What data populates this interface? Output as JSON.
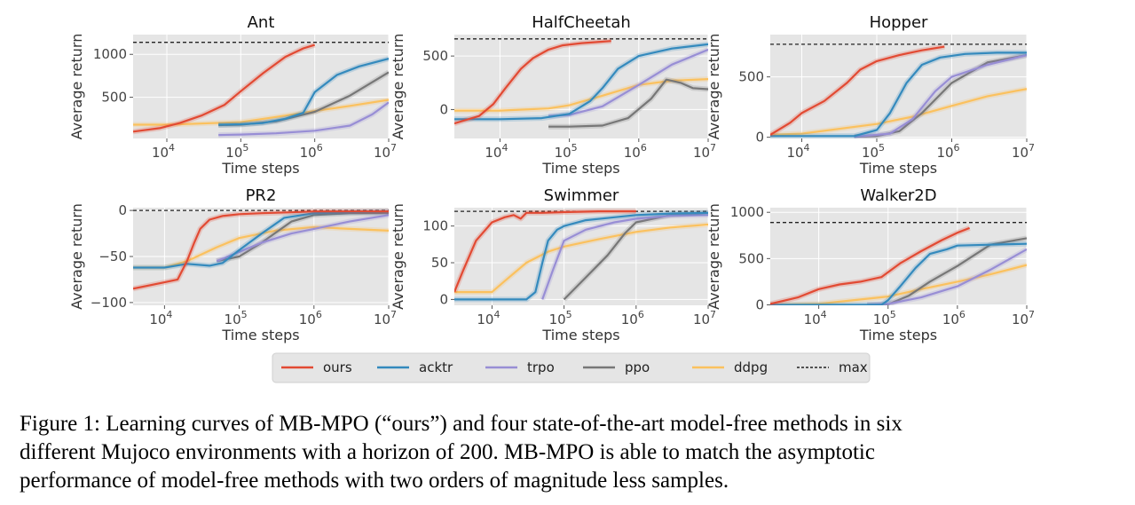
{
  "caption": {
    "lines": [
      "Figure 1: Learning curves of MB-MPO (“ours”) and four state-of-the-art model-free methods in six",
      "different Mujoco environments with a horizon of 200.  MB-MPO is able to match the asymptotic",
      "performance of model-free methods with two orders of magnitude less samples."
    ]
  },
  "legend": {
    "entries": [
      {
        "label": "ours",
        "color": "#e24a33",
        "style": "solid"
      },
      {
        "label": "acktr",
        "color": "#348abd",
        "style": "solid"
      },
      {
        "label": "trpo",
        "color": "#988ed5",
        "style": "solid"
      },
      {
        "label": "ppo",
        "color": "#777777",
        "style": "solid"
      },
      {
        "label": "ddpg",
        "color": "#fbc15e",
        "style": "solid"
      },
      {
        "label": "max",
        "color": "#222222",
        "style": "dashed"
      }
    ]
  },
  "chart_data": [
    {
      "type": "line",
      "title": "Ant",
      "xlabel": "Time steps",
      "ylabel": "Average return",
      "xscale": "log",
      "xlim": [
        3500,
        10000000
      ],
      "ylim": [
        20,
        1230
      ],
      "xticks": [
        {
          "value": 10000,
          "label": "10^4"
        },
        {
          "value": 100000,
          "label": "10^5"
        },
        {
          "value": 1000000,
          "label": "10^6"
        },
        {
          "value": 10000000,
          "label": "10^7"
        }
      ],
      "yticks": [
        {
          "value": 500,
          "label": "500"
        },
        {
          "value": 1000,
          "label": "1000"
        }
      ],
      "grid": true,
      "max_line": 1140,
      "series": [
        {
          "name": "ours",
          "x": [
            3500,
            8000,
            15000,
            30000,
            60000,
            100000,
            200000,
            400000,
            700000,
            1000000
          ],
          "y": [
            100,
            140,
            200,
            290,
            410,
            570,
            780,
            970,
            1070,
            1110
          ]
        },
        {
          "name": "acktr",
          "x": [
            50000,
            100000,
            200000,
            400000,
            700000,
            1000000,
            2000000,
            4000000,
            10000000
          ],
          "y": [
            180,
            185,
            200,
            250,
            320,
            560,
            760,
            860,
            950
          ]
        },
        {
          "name": "trpo",
          "x": [
            50000,
            100000,
            300000,
            1000000,
            3000000,
            6000000,
            10000000
          ],
          "y": [
            60,
            65,
            80,
            110,
            170,
            300,
            440
          ]
        },
        {
          "name": "ppo",
          "x": [
            50000,
            100000,
            300000,
            1000000,
            3000000,
            10000000
          ],
          "y": [
            175,
            180,
            220,
            330,
            520,
            790
          ]
        },
        {
          "name": "ddpg",
          "x": [
            3500,
            10000,
            100000,
            300000,
            1000000,
            3000000,
            10000000
          ],
          "y": [
            180,
            180,
            210,
            270,
            340,
            400,
            470
          ]
        }
      ]
    },
    {
      "type": "line",
      "title": "HalfCheetah",
      "xlabel": "Time steps",
      "ylabel": "Average return",
      "xscale": "log",
      "xlim": [
        2200,
        10000000
      ],
      "ylim": [
        -270,
        700
      ],
      "xticks": [
        {
          "value": 10000,
          "label": "10^4"
        },
        {
          "value": 100000,
          "label": "10^5"
        },
        {
          "value": 1000000,
          "label": "10^6"
        },
        {
          "value": 10000000,
          "label": "10^7"
        }
      ],
      "yticks": [
        {
          "value": 0,
          "label": "0"
        },
        {
          "value": 500,
          "label": "500"
        }
      ],
      "grid": true,
      "max_line": 660,
      "series": [
        {
          "name": "ours",
          "x": [
            2200,
            5000,
            8000,
            12000,
            20000,
            30000,
            50000,
            80000,
            150000,
            250000,
            400000
          ],
          "y": [
            -130,
            -60,
            50,
            200,
            380,
            480,
            560,
            600,
            620,
            630,
            640
          ]
        },
        {
          "name": "acktr",
          "x": [
            2200,
            10000,
            40000,
            100000,
            200000,
            300000,
            500000,
            1000000,
            3000000,
            10000000
          ],
          "y": [
            -90,
            -90,
            -80,
            -40,
            80,
            200,
            380,
            500,
            570,
            610
          ]
        },
        {
          "name": "trpo",
          "x": [
            50000,
            100000,
            300000,
            1000000,
            3000000,
            10000000
          ],
          "y": [
            -60,
            -50,
            30,
            230,
            420,
            560
          ]
        },
        {
          "name": "ppo",
          "x": [
            50000,
            100000,
            300000,
            700000,
            1500000,
            2500000,
            4000000,
            6000000,
            10000000
          ],
          "y": [
            -160,
            -160,
            -150,
            -80,
            100,
            280,
            250,
            200,
            190
          ]
        },
        {
          "name": "ddpg",
          "x": [
            2200,
            10000,
            50000,
            100000,
            300000,
            1000000,
            3000000,
            10000000
          ],
          "y": [
            -10,
            -10,
            10,
            40,
            130,
            230,
            270,
            285
          ]
        }
      ]
    },
    {
      "type": "line",
      "title": "Hopper",
      "xlabel": "Time steps",
      "ylabel": "Average return",
      "xscale": "log",
      "xlim": [
        3800,
        10000000
      ],
      "ylim": [
        -10,
        850
      ],
      "xticks": [
        {
          "value": 10000,
          "label": "10^4"
        },
        {
          "value": 100000,
          "label": "10^5"
        },
        {
          "value": 1000000,
          "label": "10^6"
        },
        {
          "value": 10000000,
          "label": "10^7"
        }
      ],
      "yticks": [
        {
          "value": 0,
          "label": "0"
        },
        {
          "value": 500,
          "label": "500"
        }
      ],
      "grid": true,
      "max_line": 770,
      "series": [
        {
          "name": "ours",
          "x": [
            3800,
            7000,
            10000,
            20000,
            40000,
            60000,
            100000,
            200000,
            400000,
            800000
          ],
          "y": [
            20,
            120,
            200,
            300,
            450,
            560,
            630,
            680,
            720,
            750
          ]
        },
        {
          "name": "acktr",
          "x": [
            3800,
            50000,
            100000,
            150000,
            250000,
            400000,
            700000,
            1500000,
            4000000,
            10000000
          ],
          "y": [
            10,
            10,
            60,
            200,
            450,
            600,
            660,
            690,
            700,
            700
          ]
        },
        {
          "name": "trpo",
          "x": [
            50000,
            150000,
            300000,
            600000,
            1000000,
            3000000,
            10000000
          ],
          "y": [
            5,
            30,
            150,
            380,
            500,
            600,
            680
          ]
        },
        {
          "name": "ppo",
          "x": [
            50000,
            100000,
            200000,
            400000,
            1000000,
            3000000,
            10000000
          ],
          "y": [
            5,
            10,
            50,
            200,
            450,
            620,
            680
          ]
        },
        {
          "name": "ddpg",
          "x": [
            3800,
            10000,
            100000,
            300000,
            1000000,
            3000000,
            10000000
          ],
          "y": [
            20,
            30,
            110,
            170,
            260,
            340,
            400
          ]
        }
      ]
    },
    {
      "type": "line",
      "title": "PR2",
      "xlabel": "Time steps",
      "ylabel": "Average return",
      "xscale": "log",
      "xlim": [
        3800,
        10000000
      ],
      "ylim": [
        -103,
        3
      ],
      "xticks": [
        {
          "value": 10000,
          "label": "10^4"
        },
        {
          "value": 100000,
          "label": "10^5"
        },
        {
          "value": 1000000,
          "label": "10^6"
        },
        {
          "value": 10000000,
          "label": "10^7"
        }
      ],
      "yticks": [
        {
          "value": -100,
          "label": "−100"
        },
        {
          "value": -50,
          "label": "−50"
        },
        {
          "value": 0,
          "label": "0"
        }
      ],
      "grid": true,
      "max_line": 0,
      "series": [
        {
          "name": "ours",
          "x": [
            3800,
            10000,
            15000,
            20000,
            25000,
            30000,
            40000,
            60000,
            100000,
            200000,
            500000,
            1000000,
            3000000,
            10000000
          ],
          "y": [
            -85,
            -78,
            -75,
            -55,
            -35,
            -20,
            -10,
            -6,
            -4,
            -3,
            -2,
            -1,
            -1,
            -1
          ]
        },
        {
          "name": "acktr",
          "x": [
            3800,
            10000,
            20000,
            40000,
            60000,
            100000,
            200000,
            400000,
            1000000,
            3000000,
            10000000
          ],
          "y": [
            -62,
            -62,
            -58,
            -60,
            -57,
            -43,
            -25,
            -8,
            -3,
            -2,
            -1
          ]
        },
        {
          "name": "trpo",
          "x": [
            50000,
            100000,
            200000,
            500000,
            1000000,
            3000000,
            10000000
          ],
          "y": [
            -55,
            -45,
            -35,
            -25,
            -20,
            -12,
            -5
          ]
        },
        {
          "name": "ppo",
          "x": [
            50000,
            100000,
            200000,
            500000,
            1000000,
            3000000,
            10000000
          ],
          "y": [
            -55,
            -50,
            -35,
            -12,
            -5,
            -3,
            -3
          ]
        },
        {
          "name": "ddpg",
          "x": [
            3800,
            10000,
            20000,
            50000,
            100000,
            300000,
            1000000,
            3000000,
            10000000
          ],
          "y": [
            -62,
            -62,
            -55,
            -40,
            -30,
            -22,
            -18,
            -20,
            -22
          ]
        }
      ]
    },
    {
      "type": "line",
      "title": "Swimmer",
      "xlabel": "Time steps",
      "ylabel": "Average return",
      "xscale": "log",
      "xlim": [
        3000,
        10000000
      ],
      "ylim": [
        -8,
        125
      ],
      "xticks": [
        {
          "value": 10000,
          "label": "10^4"
        },
        {
          "value": 100000,
          "label": "10^5"
        },
        {
          "value": 1000000,
          "label": "10^6"
        },
        {
          "value": 10000000,
          "label": "10^7"
        }
      ],
      "yticks": [
        {
          "value": 0,
          "label": "0"
        },
        {
          "value": 50,
          "label": "50"
        },
        {
          "value": 100,
          "label": "100"
        }
      ],
      "grid": true,
      "max_line": 120,
      "series": [
        {
          "name": "ours",
          "x": [
            3000,
            4000,
            6000,
            10000,
            15000,
            20000,
            25000,
            30000,
            50000,
            100000,
            300000,
            1000000
          ],
          "y": [
            10,
            40,
            80,
            105,
            112,
            115,
            110,
            118,
            118,
            119,
            120,
            120
          ]
        },
        {
          "name": "acktr",
          "x": [
            3000,
            30000,
            40000,
            50000,
            60000,
            80000,
            100000,
            200000,
            500000,
            1000000,
            3000000,
            10000000
          ],
          "y": [
            0,
            0,
            10,
            50,
            80,
            95,
            100,
            108,
            112,
            115,
            117,
            118
          ]
        },
        {
          "name": "trpo",
          "x": [
            50000,
            70000,
            100000,
            200000,
            500000,
            1000000,
            3000000,
            10000000
          ],
          "y": [
            0,
            40,
            80,
            95,
            105,
            110,
            114,
            115
          ]
        },
        {
          "name": "ppo",
          "x": [
            100000,
            200000,
            400000,
            700000,
            1000000,
            3000000,
            10000000
          ],
          "y": [
            0,
            30,
            60,
            90,
            105,
            115,
            118
          ]
        },
        {
          "name": "ddpg",
          "x": [
            3000,
            10000,
            15000,
            30000,
            60000,
            100000,
            300000,
            1000000,
            3000000,
            10000000
          ],
          "y": [
            10,
            10,
            25,
            50,
            65,
            72,
            82,
            92,
            98,
            102
          ]
        }
      ]
    },
    {
      "type": "line",
      "title": "Walker2D",
      "xlabel": "Time steps",
      "ylabel": "Average return",
      "xscale": "log",
      "xlim": [
        2000,
        10000000
      ],
      "ylim": [
        -5,
        1050
      ],
      "xticks": [
        {
          "value": 10000,
          "label": "10^4"
        },
        {
          "value": 100000,
          "label": "10^5"
        },
        {
          "value": 1000000,
          "label": "10^6"
        },
        {
          "value": 10000000,
          "label": "10^7"
        }
      ],
      "yticks": [
        {
          "value": 0,
          "label": "0"
        },
        {
          "value": 500,
          "label": "500"
        },
        {
          "value": 1000,
          "label": "1000"
        }
      ],
      "grid": true,
      "max_line": 890,
      "series": [
        {
          "name": "ours",
          "x": [
            2000,
            5000,
            10000,
            20000,
            40000,
            80000,
            150000,
            300000,
            600000,
            1000000,
            1500000
          ],
          "y": [
            10,
            80,
            170,
            220,
            250,
            300,
            450,
            580,
            700,
            780,
            830
          ]
        },
        {
          "name": "acktr",
          "x": [
            2000,
            80000,
            100000,
            150000,
            250000,
            400000,
            700000,
            1000000,
            3000000,
            10000000
          ],
          "y": [
            0,
            0,
            50,
            200,
            400,
            550,
            600,
            640,
            650,
            660
          ]
        },
        {
          "name": "trpo",
          "x": [
            50000,
            100000,
            300000,
            1000000,
            3000000,
            10000000
          ],
          "y": [
            0,
            10,
            80,
            200,
            380,
            600
          ]
        },
        {
          "name": "ppo",
          "x": [
            50000,
            100000,
            200000,
            400000,
            1000000,
            3000000,
            10000000
          ],
          "y": [
            0,
            5,
            100,
            250,
            420,
            650,
            720
          ]
        },
        {
          "name": "ddpg",
          "x": [
            2000,
            10000,
            100000,
            300000,
            1000000,
            3000000,
            10000000
          ],
          "y": [
            0,
            10,
            90,
            170,
            250,
            330,
            430
          ]
        }
      ]
    }
  ]
}
